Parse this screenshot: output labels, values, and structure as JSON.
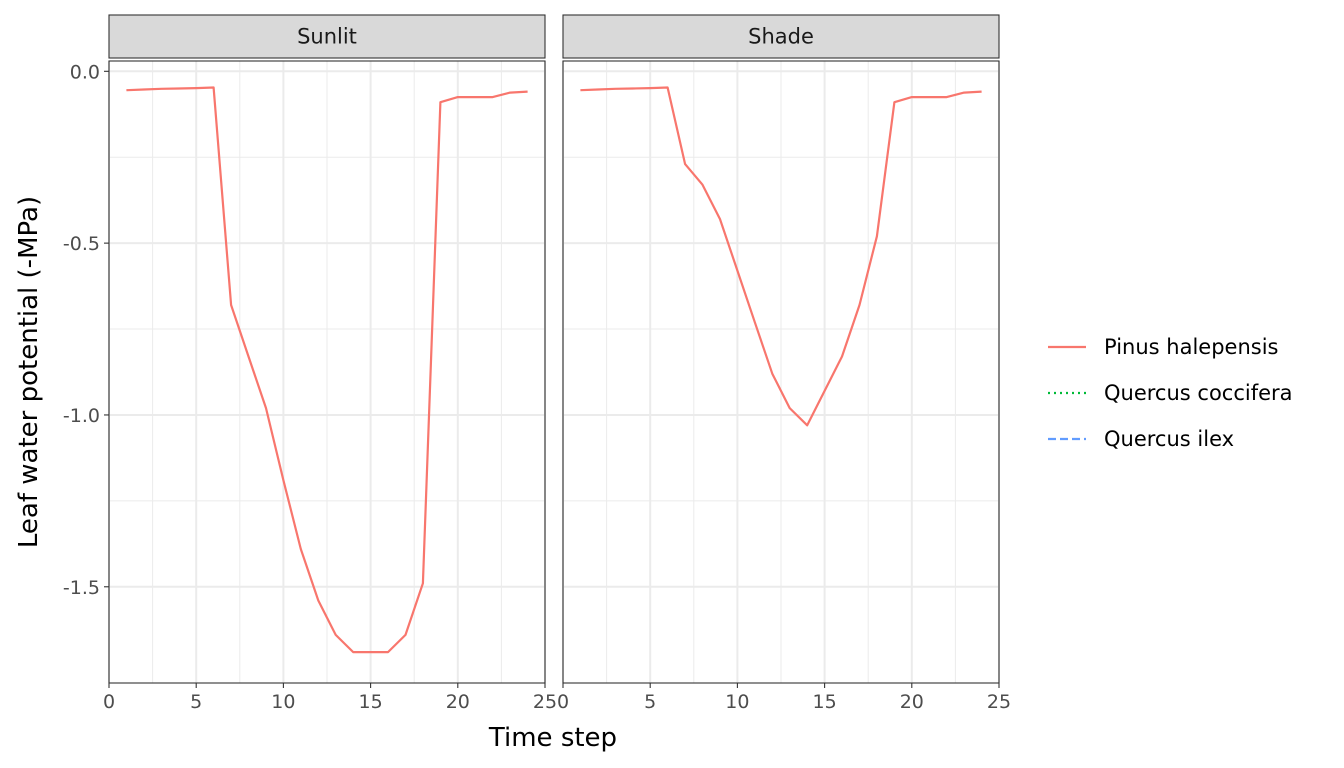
{
  "chart_data": {
    "type": "line",
    "xlabel": "Time step",
    "ylabel": "Leaf water potential (-MPa)",
    "xlim": [
      0,
      25
    ],
    "ylim": [
      -1.78,
      0.03
    ],
    "x_ticks": [
      0,
      5,
      10,
      15,
      20,
      25
    ],
    "y_ticks": [
      0.0,
      -0.5,
      -1.0,
      -1.5
    ],
    "y_tick_labels": [
      "0.0",
      "-0.5",
      "-1.0",
      "-1.5"
    ],
    "grid": true,
    "legend_position": "right",
    "legend": [
      {
        "name": "Pinus halepensis",
        "color": "#F8766D",
        "dash": "solid"
      },
      {
        "name": "Quercus coccifera",
        "color": "#00BA38",
        "dash": "dotted"
      },
      {
        "name": "Quercus ilex",
        "color": "#619CFF",
        "dash": "dashed"
      }
    ],
    "panels": [
      {
        "title": "Sunlit",
        "series": [
          {
            "name": "Pinus halepensis",
            "x": [
              1,
              2,
              3,
              4,
              5,
              6,
              7,
              8,
              9,
              10,
              11,
              12,
              13,
              14,
              15,
              16,
              17,
              18,
              19,
              20,
              21,
              22,
              23,
              24
            ],
            "y": [
              -0.055,
              -0.053,
              -0.051,
              -0.05,
              -0.049,
              -0.047,
              -0.68,
              -0.83,
              -0.98,
              -1.19,
              -1.39,
              -1.54,
              -1.64,
              -1.69,
              -1.69,
              -1.69,
              -1.64,
              -1.49,
              -0.09,
              -0.075,
              -0.075,
              -0.075,
              -0.062,
              -0.059
            ]
          }
        ]
      },
      {
        "title": "Shade",
        "series": [
          {
            "name": "Pinus halepensis",
            "x": [
              1,
              2,
              3,
              4,
              5,
              6,
              7,
              8,
              9,
              10,
              11,
              12,
              13,
              14,
              15,
              16,
              17,
              18,
              19,
              20,
              21,
              22,
              23,
              24
            ],
            "y": [
              -0.055,
              -0.053,
              -0.051,
              -0.05,
              -0.049,
              -0.047,
              -0.27,
              -0.33,
              -0.43,
              -0.58,
              -0.73,
              -0.88,
              -0.98,
              -1.03,
              -0.93,
              -0.83,
              -0.68,
              -0.48,
              -0.09,
              -0.075,
              -0.075,
              -0.075,
              -0.062,
              -0.059
            ]
          }
        ]
      }
    ]
  }
}
